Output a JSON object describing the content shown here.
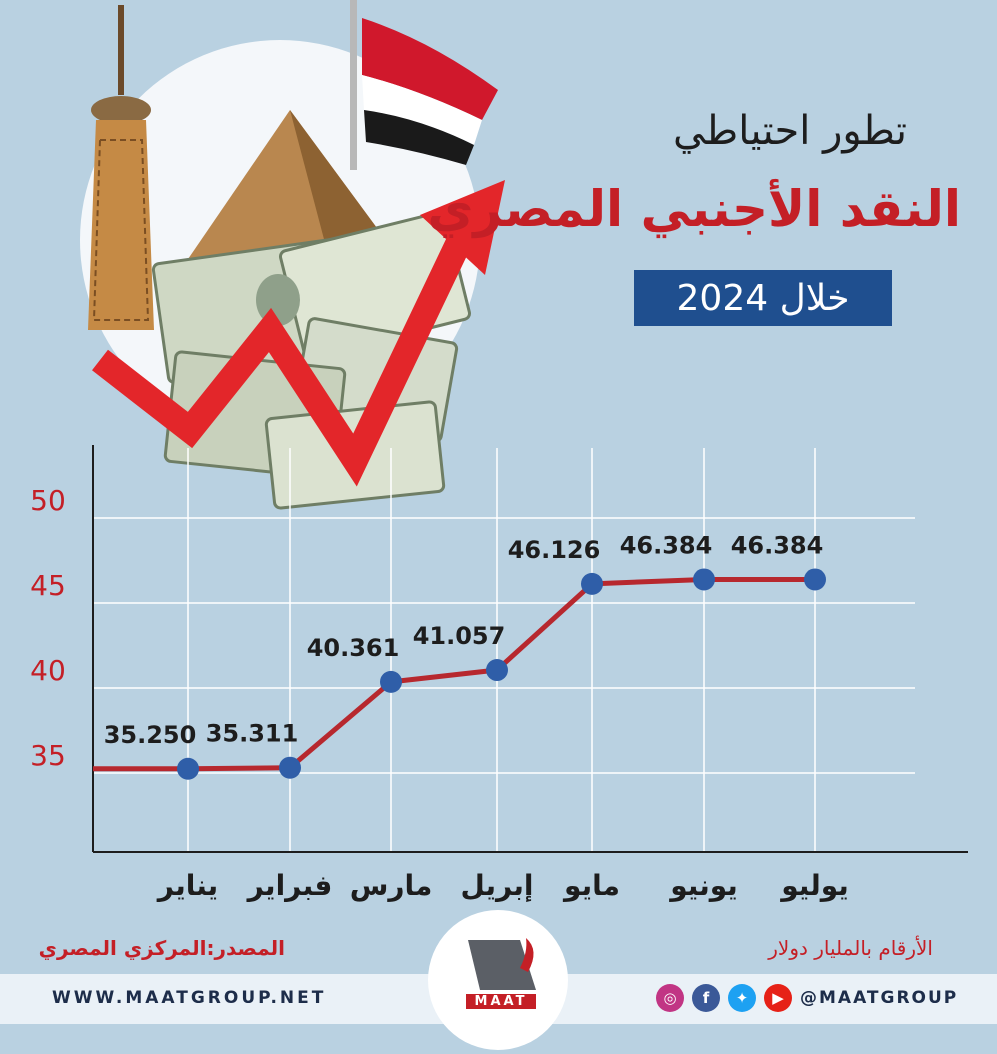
{
  "header": {
    "title_line1": "تطور احتياطي",
    "title_line2": "النقد الأجنبي المصري",
    "subtitle": "خلال 2024"
  },
  "chart_data": {
    "type": "line",
    "categories": [
      "يناير",
      "فبراير",
      "مارس",
      "إبريل",
      "مايو",
      "يونيو",
      "يوليو"
    ],
    "values": [
      35.25,
      35.311,
      40.361,
      41.057,
      46.126,
      46.384,
      46.384
    ],
    "data_labels": [
      "35.250",
      "35.311",
      "40.361",
      "41.057",
      "46.126",
      "46.384",
      "46.384"
    ],
    "y_ticks": [
      "35",
      "40",
      "45",
      "50"
    ],
    "ylim": [
      30,
      53
    ],
    "grid": true,
    "line_color": "#b7282e",
    "marker_color": "#2f5ea8"
  },
  "footer": {
    "source": "المصدر:المركزي المصري",
    "units": "الأرقام بالمليار دولار",
    "website": "WWW.MAATGROUP.NET",
    "handle": "@MAATGROUP",
    "logo_text": "MAAT"
  },
  "social_icons": [
    {
      "name": "instagram-icon",
      "glyph": "◎",
      "color": "#c13584"
    },
    {
      "name": "facebook-icon",
      "glyph": "f",
      "color": "#3b5998"
    },
    {
      "name": "twitter-icon",
      "glyph": "✦",
      "color": "#1da1f2"
    },
    {
      "name": "youtube-icon",
      "glyph": "▶",
      "color": "#e62117"
    }
  ],
  "colors": {
    "background": "#b9d1e1",
    "accent_red": "#c41f26",
    "title_box": "#1f4f8f"
  }
}
